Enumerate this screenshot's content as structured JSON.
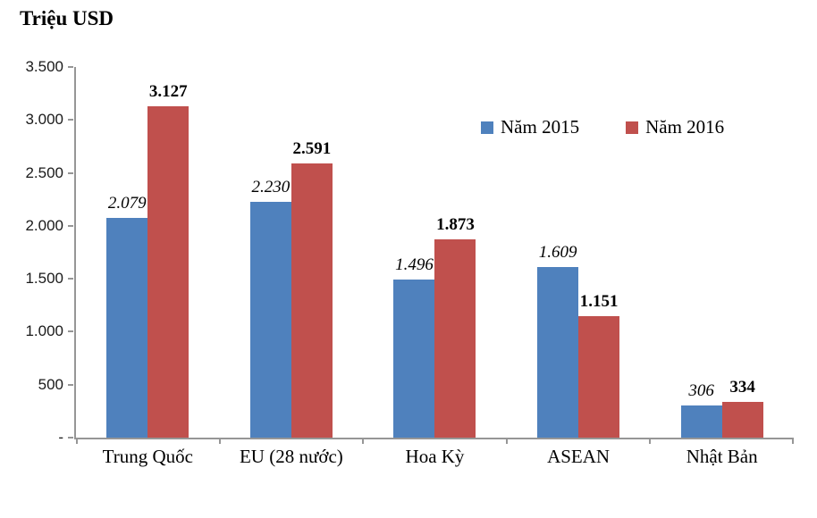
{
  "chart_data": {
    "type": "bar",
    "title": "Triệu USD",
    "ylabel": "Triệu USD",
    "xlabel": "",
    "categories": [
      "Trung Quốc",
      "EU (28 nước)",
      "Hoa Kỳ",
      "ASEAN",
      "Nhật Bản"
    ],
    "series": [
      {
        "name": "Năm 2015",
        "color": "#4F81BD",
        "values": [
          2079,
          2230,
          1496,
          1609,
          306
        ],
        "labels": [
          "2.079",
          "2.230",
          "1.496",
          "1.609",
          "306"
        ],
        "label_style": "italic"
      },
      {
        "name": "Năm 2016",
        "color": "#C0504D",
        "values": [
          3127,
          2591,
          1873,
          1151,
          334
        ],
        "labels": [
          "3.127",
          "2.591",
          "1.873",
          "1.151",
          "334"
        ],
        "label_style": "bold"
      }
    ],
    "ylim": [
      0,
      3500
    ],
    "yticks": {
      "values": [
        0,
        500,
        1000,
        1500,
        2000,
        2500,
        3000,
        3500
      ],
      "labels": [
        "-",
        "500",
        "1.000",
        "1.500",
        "2.000",
        "2.500",
        "3.000",
        "3.500"
      ]
    },
    "grid": false,
    "legend_position": "inside-top-right",
    "axis_color": "#969696",
    "number_format": "thousands-dot"
  }
}
